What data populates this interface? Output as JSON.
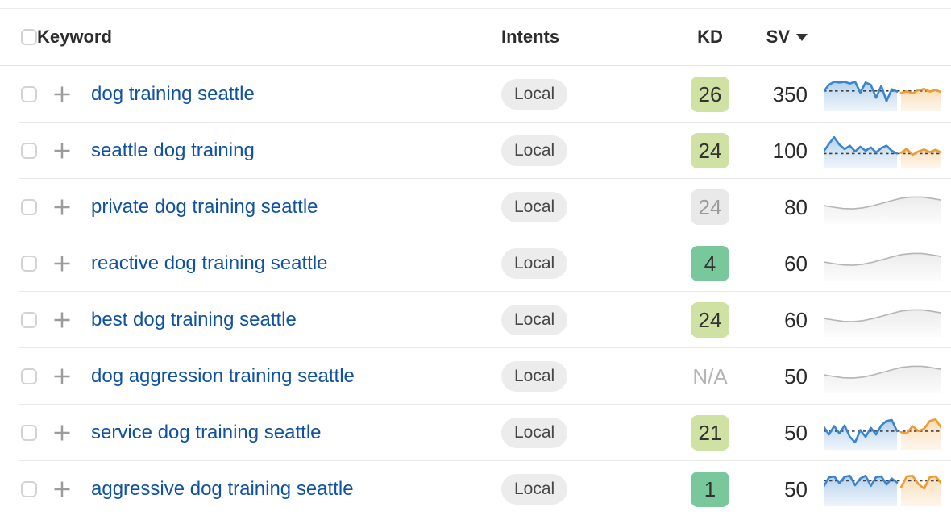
{
  "header": {
    "keyword": "Keyword",
    "intents": "Intents",
    "kd": "KD",
    "sv": "SV"
  },
  "icons": {
    "sort": "sort-desc-triangle",
    "add": "plus-cross",
    "select": "empty-checkbox"
  },
  "colors": {
    "link": "#0f51a3",
    "divider": "#e9e9e9",
    "intent_badge": {
      "bg": "#ececec",
      "text": "#474747"
    },
    "kd": {
      "light-green": {
        "bg": "#cfe2a3",
        "text": "#333333"
      },
      "green": {
        "bg": "#79c89b",
        "text": "#333333"
      },
      "gray": {
        "bg": "#e9e9e9",
        "text": "#9b9b9b"
      },
      "na": {
        "bg": "transparent",
        "text": "#b5b5b5"
      }
    },
    "spark": {
      "blue_line": "#3a85d0",
      "blue_fill_top": "#a9cbea",
      "blue_fill_bottom": "#e4eef8",
      "orange_line": "#f09a30",
      "orange_fill_top": "#f7d9ae",
      "orange_fill_bottom": "#fdf0e0",
      "gray_line": "#b5b5b5",
      "gray_fill_top": "#ececec",
      "gray_fill_bottom": "#fcfcfc",
      "dash": "#3f3f3f"
    }
  },
  "rows": [
    {
      "keyword": "dog training seattle",
      "intent": "Local",
      "kd": "26",
      "kd_level": "light-green",
      "sv": "350",
      "spark": {
        "type": "trend",
        "dash": 0.4,
        "blue": [
          0.42,
          0.22,
          0.13,
          0.15,
          0.13,
          0.18,
          0.13,
          0.45,
          0.15,
          0.22,
          0.6,
          0.25,
          0.7,
          0.35,
          0.42
        ],
        "orange": [
          0.46,
          0.41,
          0.47,
          0.38,
          0.34,
          0.42,
          0.37,
          0.44
        ]
      }
    },
    {
      "keyword": "seattle dog training",
      "intent": "Local",
      "kd": "24",
      "kd_level": "light-green",
      "sv": "100",
      "spark": {
        "type": "trend",
        "dash": 0.58,
        "blue": [
          0.52,
          0.3,
          0.1,
          0.32,
          0.45,
          0.35,
          0.52,
          0.38,
          0.5,
          0.4,
          0.55,
          0.42,
          0.35,
          0.5,
          0.58
        ],
        "orange": [
          0.56,
          0.44,
          0.62,
          0.52,
          0.46,
          0.54,
          0.47,
          0.55
        ]
      }
    },
    {
      "keyword": "private dog training seattle",
      "intent": "Local",
      "kd": "24",
      "kd_level": "gray",
      "sv": "80",
      "spark": {
        "type": "placeholder",
        "points": [
          0.45,
          0.5,
          0.54,
          0.55,
          0.52,
          0.46,
          0.38,
          0.3,
          0.23,
          0.2,
          0.2,
          0.24,
          0.29
        ]
      }
    },
    {
      "keyword": "reactive dog training seattle",
      "intent": "Local",
      "kd": "4",
      "kd_level": "green",
      "sv": "60",
      "spark": {
        "type": "placeholder",
        "points": [
          0.45,
          0.5,
          0.54,
          0.55,
          0.52,
          0.46,
          0.38,
          0.3,
          0.23,
          0.2,
          0.2,
          0.24,
          0.29
        ]
      }
    },
    {
      "keyword": "best dog training seattle",
      "intent": "Local",
      "kd": "24",
      "kd_level": "light-green",
      "sv": "60",
      "spark": {
        "type": "placeholder",
        "points": [
          0.45,
          0.5,
          0.54,
          0.55,
          0.52,
          0.46,
          0.38,
          0.3,
          0.23,
          0.2,
          0.2,
          0.24,
          0.29
        ]
      }
    },
    {
      "keyword": "dog aggression training seattle",
      "intent": "Local",
      "kd": "N/A",
      "kd_level": "na",
      "sv": "50",
      "spark": {
        "type": "placeholder",
        "points": [
          0.45,
          0.5,
          0.54,
          0.55,
          0.52,
          0.46,
          0.38,
          0.3,
          0.23,
          0.2,
          0.2,
          0.24,
          0.29
        ]
      }
    },
    {
      "keyword": "service dog training seattle",
      "intent": "Local",
      "kd": "21",
      "kd_level": "light-green",
      "sv": "50",
      "spark": {
        "type": "trend",
        "dash": 0.45,
        "blue": [
          0.32,
          0.55,
          0.3,
          0.52,
          0.28,
          0.62,
          0.78,
          0.42,
          0.62,
          0.35,
          0.55,
          0.28,
          0.15,
          0.12,
          0.45
        ],
        "orange": [
          0.48,
          0.52,
          0.3,
          0.45,
          0.38,
          0.15,
          0.1,
          0.35
        ]
      }
    },
    {
      "keyword": "aggressive dog training seattle",
      "intent": "Local",
      "kd": "1",
      "kd_level": "green",
      "sv": "50",
      "spark": {
        "type": "trend",
        "dash": 0.25,
        "blue": [
          0.42,
          0.15,
          0.12,
          0.32,
          0.13,
          0.1,
          0.38,
          0.18,
          0.1,
          0.4,
          0.14,
          0.12,
          0.36,
          0.18,
          0.3
        ],
        "orange": [
          0.45,
          0.12,
          0.1,
          0.34,
          0.48,
          0.14,
          0.12,
          0.32
        ]
      }
    }
  ]
}
